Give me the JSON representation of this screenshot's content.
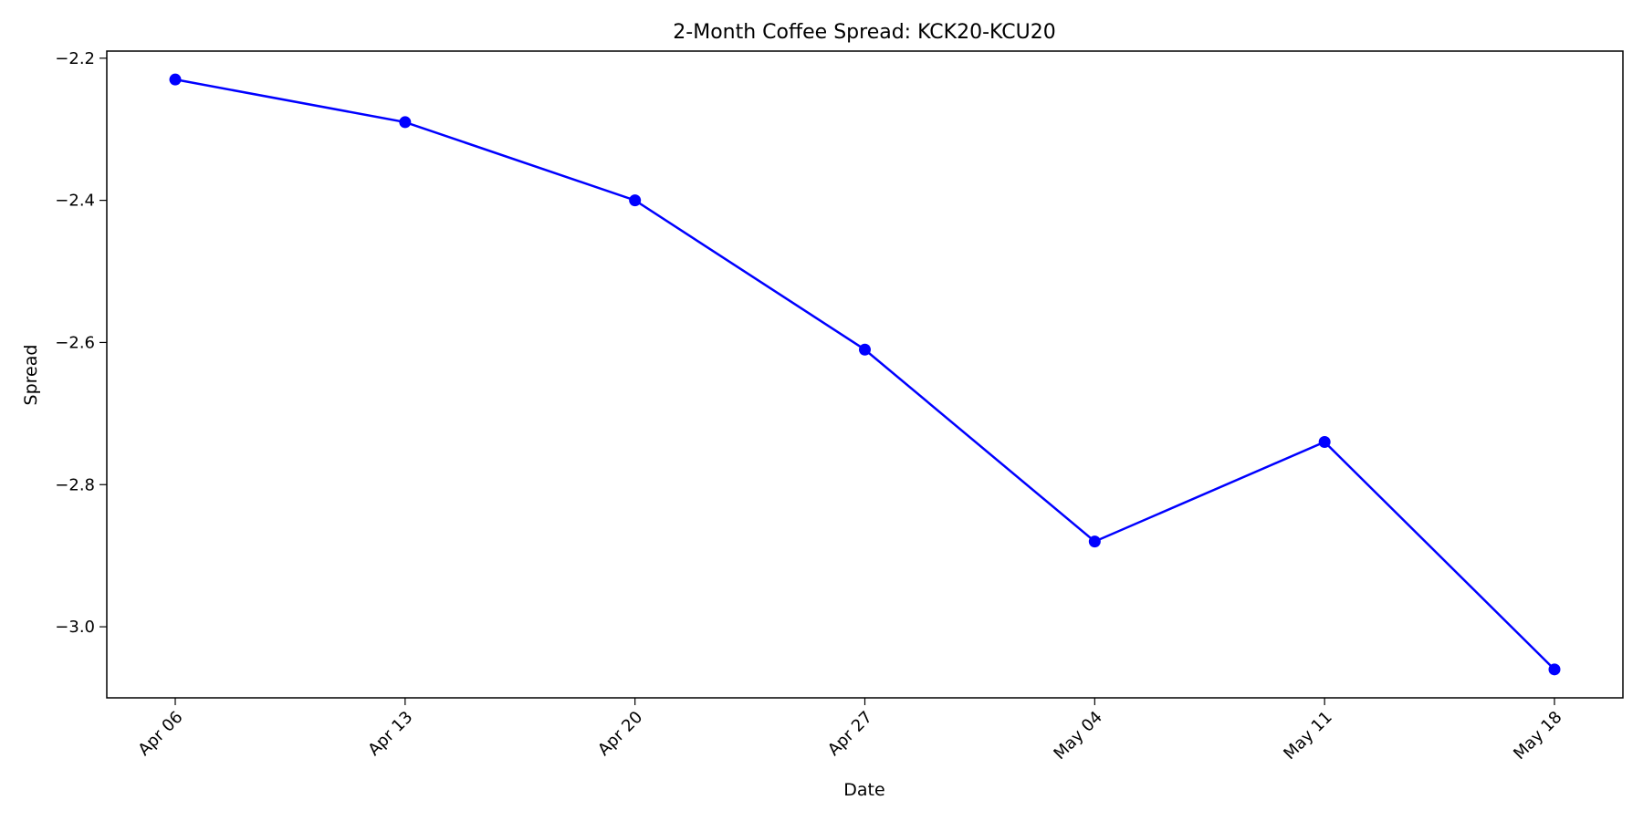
{
  "chart_data": {
    "type": "line",
    "title": "2-Month Coffee Spread: KCK20-KCU20",
    "xlabel": "Date",
    "ylabel": "Spread",
    "x": [
      "Apr 06",
      "Apr 13",
      "Apr 20",
      "Apr 27",
      "May 04",
      "May 11",
      "May 18"
    ],
    "series": [
      {
        "values": [
          -2.23,
          -2.29,
          -2.4,
          -2.61,
          -2.88,
          -2.74,
          -3.06
        ],
        "color": "#0000ff",
        "marker": "circle"
      }
    ],
    "ylim": [
      -3.1,
      -2.19
    ],
    "yticks": [
      -3.0,
      -2.8,
      -2.6,
      -2.4,
      -2.2
    ],
    "ytick_labels": [
      "−3.0",
      "−2.8",
      "−2.6",
      "−2.4",
      "−2.2"
    ],
    "grid": false,
    "legend": "none"
  }
}
